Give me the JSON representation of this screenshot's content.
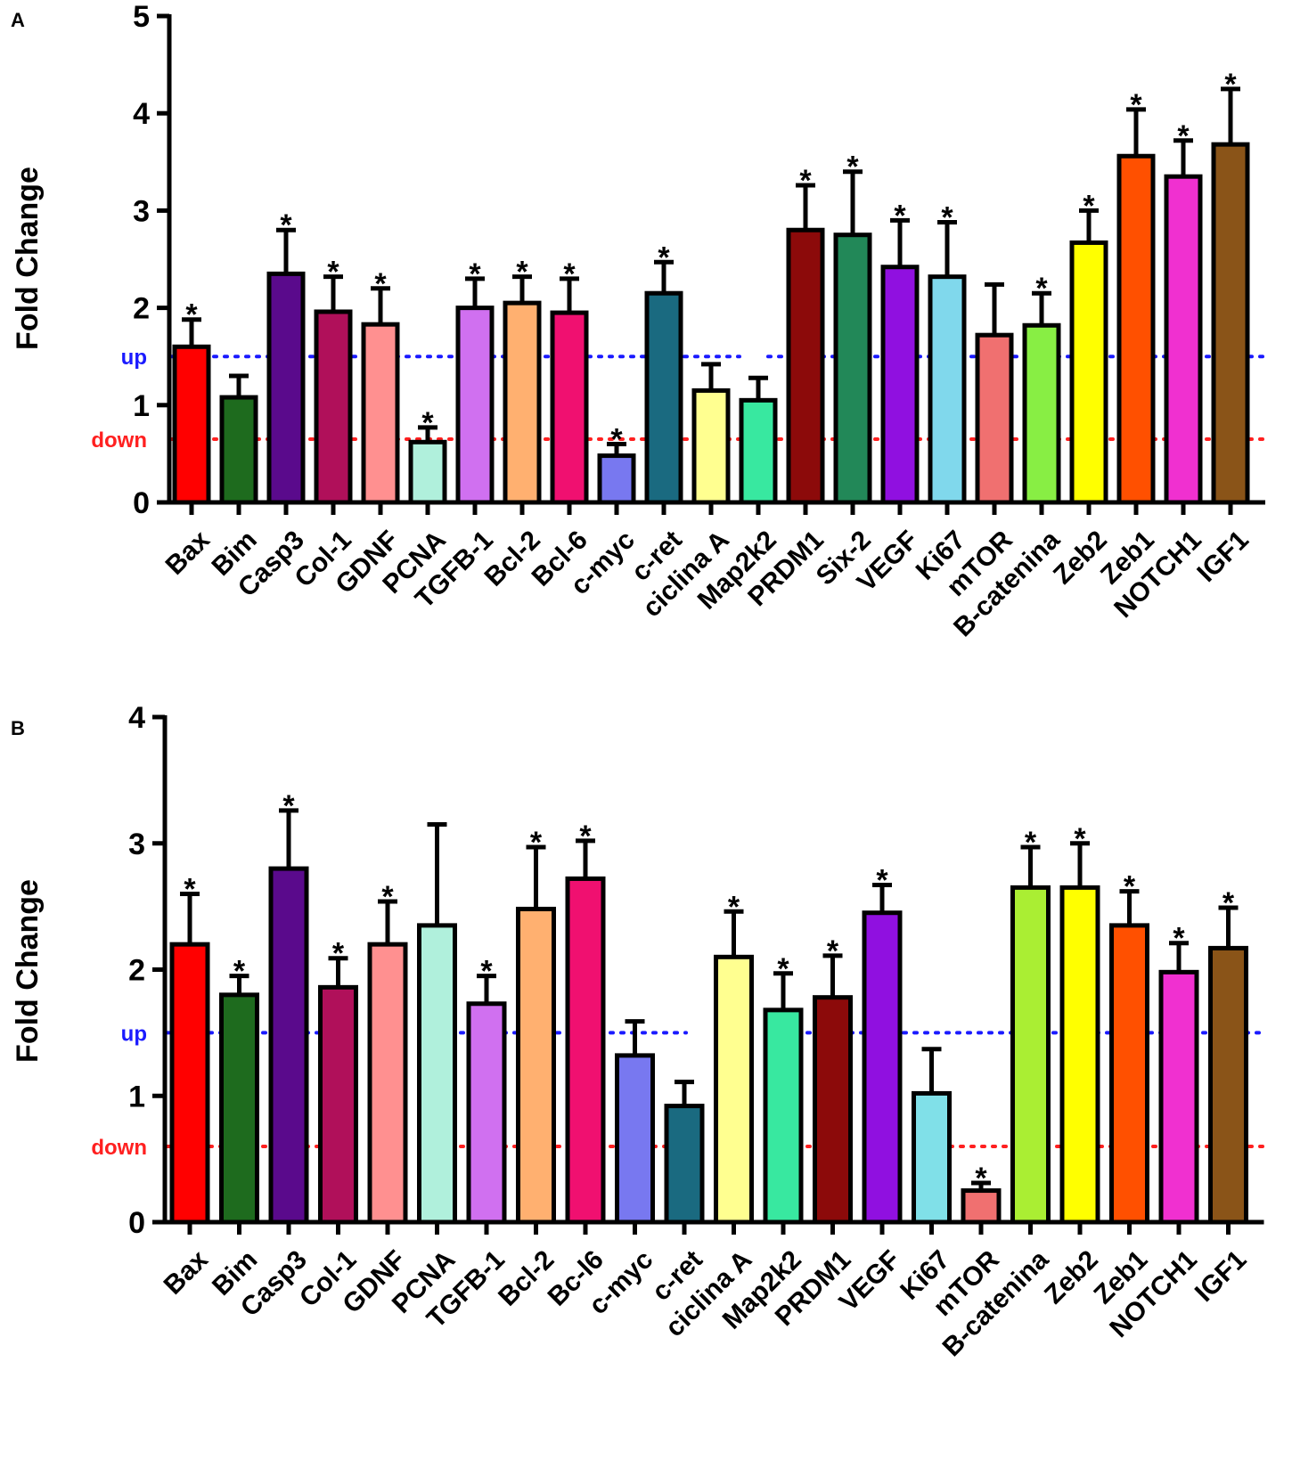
{
  "chart_data": [
    {
      "panel": "A",
      "type": "bar",
      "ylabel": "Fold Change",
      "ylim": [
        0,
        5
      ],
      "yticks": [
        0,
        1,
        2,
        3,
        4,
        5
      ],
      "thresholds": [
        {
          "label": "up",
          "value": 1.5,
          "color": "#1a1aff"
        },
        {
          "label": "down",
          "value": 0.65,
          "color": "#ff2020"
        }
      ],
      "categories": [
        "Bax",
        "Bim",
        "Casp3",
        "Col-1",
        "GDNF",
        "PCNA",
        "TGFB-1",
        "Bcl-2",
        "Bcl-6",
        "c-myc",
        "c-ret",
        "ciclina A",
        "Map2k2",
        "PRDM1",
        "Six-2",
        "VEGF",
        "Ki67",
        "mTOR",
        "B-catenina",
        "Zeb2",
        "Zeb1",
        "NOTCH1",
        "IGF1"
      ],
      "values": [
        1.6,
        1.08,
        2.35,
        1.96,
        1.83,
        0.62,
        2.0,
        2.05,
        1.95,
        0.48,
        2.15,
        1.15,
        1.05,
        2.8,
        2.75,
        2.42,
        2.32,
        1.72,
        1.82,
        2.67,
        3.56,
        3.35,
        3.68
      ],
      "errors": [
        0.28,
        0.22,
        0.45,
        0.36,
        0.37,
        0.15,
        0.3,
        0.27,
        0.35,
        0.12,
        0.32,
        0.27,
        0.23,
        0.46,
        0.65,
        0.48,
        0.56,
        0.52,
        0.33,
        0.33,
        0.48,
        0.37,
        0.57
      ],
      "significant": [
        true,
        false,
        true,
        true,
        true,
        true,
        true,
        true,
        true,
        true,
        true,
        false,
        false,
        true,
        true,
        true,
        true,
        false,
        true,
        true,
        true,
        true,
        true
      ],
      "significance_mark": "*",
      "colors": [
        "#ff0000",
        "#1e6b1e",
        "#5a0a8c",
        "#b0105a",
        "#ff9090",
        "#b0f0dc",
        "#d070f0",
        "#ffb070",
        "#f01070",
        "#7878f0",
        "#1a6a80",
        "#ffff90",
        "#38e8a0",
        "#8c0a0a",
        "#228858",
        "#9010e0",
        "#80d8ec",
        "#f07070",
        "#88ee44",
        "#ffff00",
        "#ff5000",
        "#f030d0",
        "#8a5418"
      ]
    },
    {
      "panel": "B",
      "type": "bar",
      "ylabel": "Fold Change",
      "ylim": [
        0,
        4
      ],
      "yticks": [
        0,
        1,
        2,
        3,
        4
      ],
      "thresholds": [
        {
          "label": "up",
          "value": 1.5,
          "color": "#1a1aff"
        },
        {
          "label": "down",
          "value": 0.6,
          "color": "#ff2020"
        }
      ],
      "categories": [
        "Bax",
        "Bim",
        "Casp3",
        "Col-1",
        "GDNF",
        "PCNA",
        "TGFB-1",
        "Bcl-2",
        "Bc-l6",
        "c-myc",
        "c-ret",
        "ciclina A",
        "Map2k2",
        "PRDM1",
        "VEGF",
        "Ki67",
        "mTOR",
        "B-catenina",
        "Zeb2",
        "Zeb1",
        "NOTCH1",
        "IGF1"
      ],
      "values": [
        2.2,
        1.8,
        2.8,
        1.86,
        2.2,
        2.35,
        1.73,
        2.48,
        2.72,
        1.32,
        0.92,
        2.1,
        1.68,
        1.78,
        2.45,
        1.02,
        0.25,
        2.65,
        2.65,
        2.35,
        1.98,
        2.17
      ],
      "errors": [
        0.4,
        0.15,
        0.46,
        0.23,
        0.34,
        0.8,
        0.22,
        0.49,
        0.3,
        0.27,
        0.19,
        0.36,
        0.29,
        0.33,
        0.22,
        0.35,
        0.06,
        0.32,
        0.35,
        0.27,
        0.23,
        0.32
      ],
      "significant": [
        true,
        true,
        true,
        true,
        true,
        false,
        true,
        true,
        true,
        false,
        false,
        true,
        true,
        true,
        true,
        false,
        true,
        true,
        true,
        true,
        true,
        true
      ],
      "significance_mark": "*",
      "colors": [
        "#ff0000",
        "#1e6b1e",
        "#5a0a8c",
        "#b0105a",
        "#ff9090",
        "#b0f0dc",
        "#d070f0",
        "#ffb070",
        "#f01070",
        "#7878f0",
        "#1a6a80",
        "#ffff90",
        "#38e8a0",
        "#8c0a0a",
        "#9010e0",
        "#80e0e8",
        "#f07070",
        "#aaee33",
        "#ffff00",
        "#ff5000",
        "#f030d0",
        "#8a5418"
      ]
    }
  ]
}
